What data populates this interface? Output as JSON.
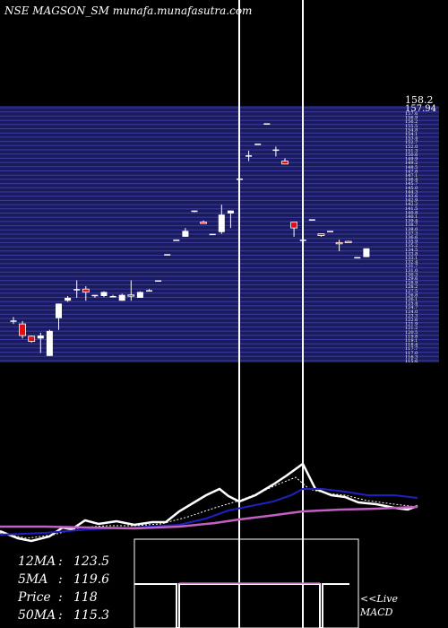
{
  "header": {
    "title": "NSE MAGSON_SM munafa.munafasutra.com"
  },
  "price_scale": {
    "top_labels": [
      "158.2",
      "157.94"
    ],
    "tick_values": [
      157.6,
      156.9,
      156.2,
      155.5,
      154.8,
      154.1,
      153.4,
      152.7,
      152.0,
      151.3,
      150.6,
      149.9,
      149.2,
      148.5,
      147.8,
      147.1,
      146.4,
      145.7,
      145.0,
      144.3,
      143.6,
      142.9,
      142.2,
      141.5,
      140.8,
      140.1,
      139.4,
      138.7,
      138.0,
      137.3,
      136.6,
      135.9,
      135.2,
      134.5,
      133.8,
      133.1,
      132.4,
      131.7,
      131.0,
      130.3,
      129.6,
      128.9,
      128.2,
      127.5,
      126.8,
      126.1,
      125.4,
      124.7,
      124.0,
      123.3,
      122.6,
      121.9,
      121.2,
      120.5,
      119.8,
      119.1,
      118.4,
      117.7,
      117.0,
      116.3,
      115.6
    ]
  },
  "stats": {
    "ma12": {
      "label": "12MA",
      "value": "123.5"
    },
    "ma5": {
      "label": "5MA",
      "value": "119.6"
    },
    "price": {
      "label": "Price",
      "value": "118"
    },
    "ma50": {
      "label": "50MA",
      "value": "115.3"
    }
  },
  "macd": {
    "label_line1": "<<Live",
    "label_line2": "MACD"
  },
  "colors": {
    "band": "#1a1a5e",
    "bandLine": "#3c3ca0",
    "up": "#ffffff",
    "down": "#dd1111",
    "ma_fast": "#ffffff",
    "ma_slow": "#2020c0",
    "ma_long": "#c060c0",
    "macd": "#c060c0"
  },
  "chart_data": {
    "type": "candlestick",
    "ylim": [
      115,
      158.5
    ],
    "candles": [
      {
        "o": 121.5,
        "h": 122.2,
        "l": 121.0,
        "c": 121.6,
        "dir": "up"
      },
      {
        "o": 121.0,
        "h": 121.5,
        "l": 118.5,
        "c": 119.0,
        "dir": "down"
      },
      {
        "o": 118.9,
        "h": 119.0,
        "l": 117.8,
        "c": 118.0,
        "dir": "down"
      },
      {
        "o": 118.5,
        "h": 119.5,
        "l": 116.0,
        "c": 119.0,
        "dir": "up"
      },
      {
        "o": 115.5,
        "h": 120.0,
        "l": 115.5,
        "c": 119.8,
        "dir": "up"
      },
      {
        "o": 122.0,
        "h": 124.5,
        "l": 120.0,
        "c": 124.5,
        "dir": "up"
      },
      {
        "o": 125.0,
        "h": 125.8,
        "l": 124.8,
        "c": 125.5,
        "dir": "up"
      },
      {
        "o": 127.0,
        "h": 128.5,
        "l": 125.5,
        "c": 127.0,
        "dir": "up"
      },
      {
        "o": 127.0,
        "h": 127.5,
        "l": 125.0,
        "c": 126.5,
        "dir": "down"
      },
      {
        "o": 125.8,
        "h": 126.0,
        "l": 125.5,
        "c": 126.0,
        "dir": "up"
      },
      {
        "o": 125.8,
        "h": 126.6,
        "l": 125.6,
        "c": 126.5,
        "dir": "up"
      },
      {
        "o": 125.8,
        "h": 126.0,
        "l": 125.6,
        "c": 125.8,
        "dir": "up"
      },
      {
        "o": 125.0,
        "h": 126.2,
        "l": 125.0,
        "c": 126.0,
        "dir": "up"
      },
      {
        "o": 125.8,
        "h": 128.5,
        "l": 125.0,
        "c": 126.0,
        "dir": "down"
      },
      {
        "o": 125.5,
        "h": 126.6,
        "l": 125.5,
        "c": 126.5,
        "dir": "up"
      },
      {
        "o": 126.8,
        "h": 127.0,
        "l": 126.8,
        "c": 126.8,
        "dir": "up"
      },
      {
        "o": 128.5,
        "h": 128.5,
        "l": 128.5,
        "c": 128.5,
        "dir": "up"
      },
      {
        "o": 133.0,
        "h": 133.0,
        "l": 133.0,
        "c": 133.0,
        "dir": "up"
      },
      {
        "o": 135.5,
        "h": 135.5,
        "l": 135.5,
        "c": 135.5,
        "dir": "up"
      },
      {
        "o": 136.0,
        "h": 137.5,
        "l": 136.0,
        "c": 137.0,
        "dir": "up"
      },
      {
        "o": 140.5,
        "h": 140.5,
        "l": 140.2,
        "c": 140.5,
        "dir": "up"
      },
      {
        "o": 138.5,
        "h": 138.8,
        "l": 138.5,
        "c": 138.5,
        "dir": "down"
      },
      {
        "o": 136.5,
        "h": 136.5,
        "l": 136.5,
        "c": 136.5,
        "dir": "up"
      },
      {
        "o": 136.8,
        "h": 141.5,
        "l": 136.5,
        "c": 139.8,
        "dir": "up"
      },
      {
        "o": 140.0,
        "h": 140.5,
        "l": 137.5,
        "c": 140.5,
        "dir": "up"
      },
      {
        "o": 146.0,
        "h": 147.0,
        "l": 143.5,
        "c": 146.0,
        "dir": "up"
      },
      {
        "o": 150.0,
        "h": 150.8,
        "l": 149.0,
        "c": 150.0,
        "dir": "up"
      },
      {
        "o": 152.0,
        "h": 152.0,
        "l": 152.0,
        "c": 152.0,
        "dir": "up"
      },
      {
        "o": 155.5,
        "h": 155.5,
        "l": 155.5,
        "c": 155.5,
        "dir": "up"
      },
      {
        "o": 151.0,
        "h": 151.5,
        "l": 149.8,
        "c": 151.0,
        "dir": "up"
      },
      {
        "o": 149.0,
        "h": 149.5,
        "l": 148.5,
        "c": 148.5,
        "dir": "down"
      },
      {
        "o": 137.5,
        "h": 138.5,
        "l": 136.0,
        "c": 138.5,
        "dir": "down"
      },
      {
        "o": 135.5,
        "h": 136.0,
        "l": 135.5,
        "c": 135.5,
        "dir": "up"
      },
      {
        "o": 139.0,
        "h": 139.0,
        "l": 139.0,
        "c": 139.0,
        "dir": "up"
      },
      {
        "o": 136.2,
        "h": 136.5,
        "l": 136.0,
        "c": 136.5,
        "dir": "down"
      },
      {
        "o": 137.0,
        "h": 137.0,
        "l": 137.0,
        "c": 137.0,
        "dir": "up"
      },
      {
        "o": 134.8,
        "h": 135.5,
        "l": 133.5,
        "c": 135.0,
        "dir": "down"
      },
      {
        "o": 135.0,
        "h": 135.3,
        "l": 135.0,
        "c": 135.2,
        "dir": "down"
      },
      {
        "o": 132.5,
        "h": 132.5,
        "l": 132.5,
        "c": 132.5,
        "dir": "up"
      },
      {
        "o": 132.5,
        "h": 134.0,
        "l": 132.5,
        "c": 134.0,
        "dir": "up"
      }
    ]
  }
}
